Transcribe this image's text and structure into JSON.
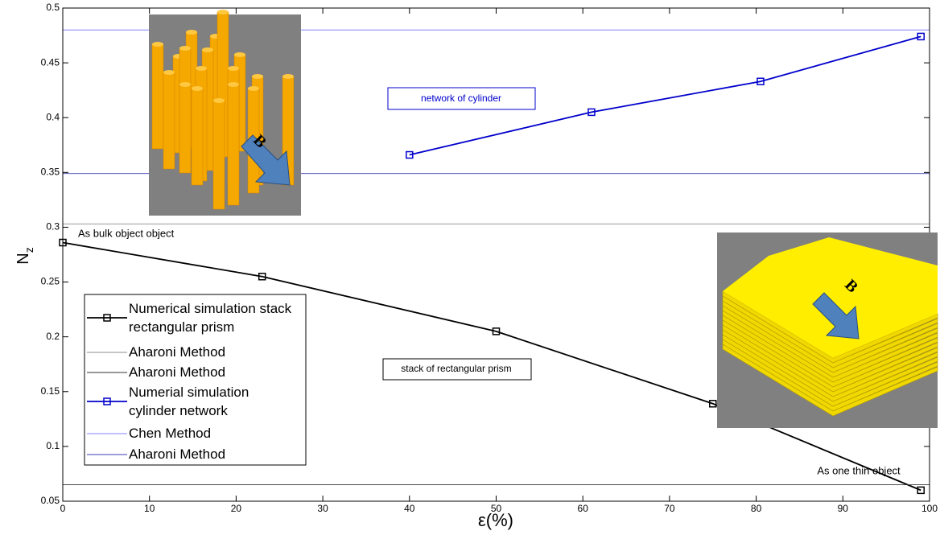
{
  "chart_data": {
    "type": "line",
    "xlabel": "ε(%)",
    "ylabel": "N",
    "ylabel_subscript": "z",
    "xlim": [
      0,
      100
    ],
    "xticks": [
      0,
      10,
      20,
      30,
      40,
      50,
      60,
      70,
      80,
      90,
      100
    ],
    "ylim": [
      0.05,
      0.5
    ],
    "yticks": [
      0.05,
      0.1,
      0.15,
      0.2,
      0.25,
      0.3,
      0.35,
      0.4,
      0.45,
      0.5
    ],
    "series": [
      {
        "name": "Numerical simulation stack rectangular prism",
        "color": "#000000",
        "marker": "square",
        "x": [
          0,
          23,
          50,
          75,
          99
        ],
        "values": [
          0.286,
          0.255,
          0.205,
          0.139,
          0.06
        ]
      },
      {
        "name": "Aharoni Method",
        "color": "#8c8c8c",
        "x": [
          0,
          100
        ],
        "values": [
          0.303,
          0.303
        ]
      },
      {
        "name": "Aharoni Method",
        "color": "#333333",
        "x": [
          0,
          100
        ],
        "values": [
          0.065,
          0.065
        ]
      },
      {
        "name": "Numerial simulation cylinder network",
        "color": "#0000cc",
        "marker": "square",
        "x": [
          40,
          61,
          80.5,
          99
        ],
        "values": [
          0.366,
          0.405,
          0.433,
          0.474
        ]
      },
      {
        "name": "Chen Method",
        "color": "#8080ff",
        "x": [
          0,
          100
        ],
        "values": [
          0.48,
          0.48
        ]
      },
      {
        "name": "Aharoni Method",
        "color": "#3c3cb4",
        "x": [
          0,
          100
        ],
        "values": [
          0.349,
          0.349
        ]
      }
    ],
    "annotations": [
      "network of cylinder",
      "stack of rectangular prism",
      "As bulk object object",
      "As one thin object"
    ],
    "insets": [
      {
        "label": "B"
      },
      {
        "label": "B"
      }
    ]
  }
}
